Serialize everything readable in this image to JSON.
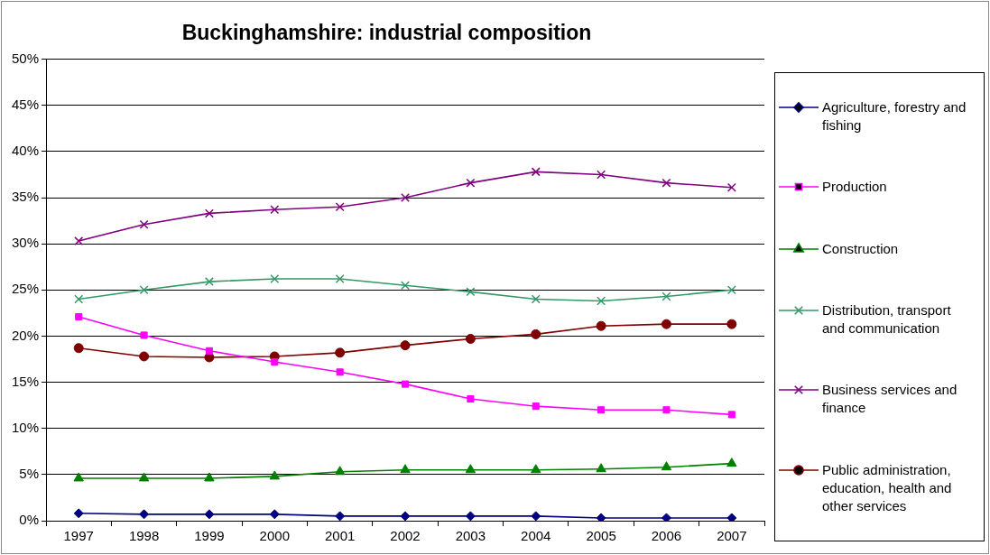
{
  "chart_data": {
    "type": "line",
    "title": "Buckinghamshire: industrial composition",
    "categories": [
      "1997",
      "1998",
      "1999",
      "2000",
      "2001",
      "2002",
      "2003",
      "2004",
      "2005",
      "2006",
      "2007"
    ],
    "series": [
      {
        "name": "Agriculture, forestry and fishing",
        "color": "#000080",
        "marker": "diamond",
        "values": [
          0.8,
          0.7,
          0.7,
          0.7,
          0.5,
          0.5,
          0.5,
          0.5,
          0.3,
          0.3,
          0.3
        ]
      },
      {
        "name": "Production",
        "color": "#ff00ff",
        "marker": "square",
        "values": [
          22.1,
          20.1,
          18.4,
          17.2,
          16.1,
          14.8,
          13.2,
          12.4,
          12.0,
          12.0,
          11.5
        ]
      },
      {
        "name": "Construction",
        "color": "#008000",
        "marker": "triangle",
        "values": [
          4.6,
          4.6,
          4.6,
          4.8,
          5.3,
          5.5,
          5.5,
          5.5,
          5.6,
          5.8,
          6.2
        ]
      },
      {
        "name": "Distribution, transport and communication",
        "color": "#339966",
        "marker": "cross",
        "values": [
          24.0,
          25.0,
          25.9,
          26.2,
          26.2,
          25.5,
          24.8,
          24.0,
          23.8,
          24.3,
          25.0
        ]
      },
      {
        "name": "Business services and finance",
        "color": "#800080",
        "marker": "cross",
        "values": [
          30.3,
          32.1,
          33.3,
          33.7,
          34.0,
          35.0,
          36.6,
          37.8,
          37.5,
          36.6,
          36.1
        ]
      },
      {
        "name": "Public administration, education, health and other services",
        "color": "#800000",
        "marker": "circle",
        "values": [
          18.7,
          17.8,
          17.7,
          17.8,
          18.2,
          19.0,
          19.7,
          20.2,
          21.1,
          21.3,
          21.3
        ]
      }
    ],
    "ylim": [
      0,
      50
    ],
    "yticks": [
      {
        "value": 0,
        "label": "0%"
      },
      {
        "value": 5,
        "label": "5%"
      },
      {
        "value": 10,
        "label": "10%"
      },
      {
        "value": 15,
        "label": "15%"
      },
      {
        "value": 20,
        "label": "20%"
      },
      {
        "value": 25,
        "label": "25%"
      },
      {
        "value": 30,
        "label": "30%"
      },
      {
        "value": 35,
        "label": "35%"
      },
      {
        "value": 40,
        "label": "40%"
      },
      {
        "value": 45,
        "label": "45%"
      },
      {
        "value": 50,
        "label": "50%"
      }
    ],
    "grid": "y",
    "legend": "right",
    "line_style": "solid"
  }
}
